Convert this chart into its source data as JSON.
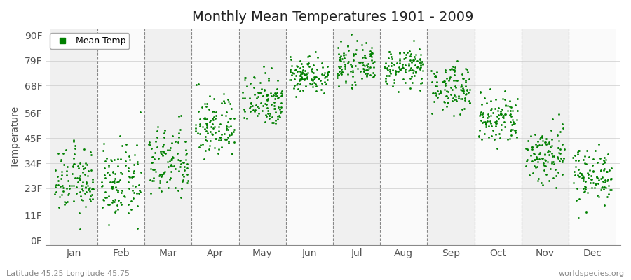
{
  "title": "Monthly Mean Temperatures 1901 - 2009",
  "ylabel": "Temperature",
  "xlabel_bottom_left": "Latitude 45.25 Longitude 45.75",
  "xlabel_bottom_right": "worldspecies.org",
  "ytick_labels": [
    "0F",
    "11F",
    "23F",
    "34F",
    "45F",
    "56F",
    "68F",
    "79F",
    "90F"
  ],
  "ytick_values": [
    0,
    11,
    23,
    34,
    45,
    56,
    68,
    79,
    90
  ],
  "months": [
    "Jan",
    "Feb",
    "Mar",
    "Apr",
    "May",
    "Jun",
    "Jul",
    "Aug",
    "Sep",
    "Oct",
    "Nov",
    "Dec"
  ],
  "month_positions": [
    1,
    2,
    3,
    4,
    5,
    6,
    7,
    8,
    9,
    10,
    11,
    12
  ],
  "dot_color": "#008000",
  "figure_bg": "#ffffff",
  "plot_bg_odd": "#f0f0f0",
  "plot_bg_even": "#fafafa",
  "vline_color": "#888888",
  "title_fontsize": 14,
  "label_fontsize": 10,
  "tick_fontsize": 10,
  "n_years": 109,
  "monthly_means_F": [
    26,
    25,
    34,
    50,
    62,
    73,
    77,
    76,
    67,
    53,
    38,
    29
  ],
  "monthly_stds_F": [
    7,
    8,
    8,
    7,
    6,
    4,
    4,
    4,
    5,
    6,
    7,
    6
  ],
  "ymin": -2,
  "ymax": 93
}
